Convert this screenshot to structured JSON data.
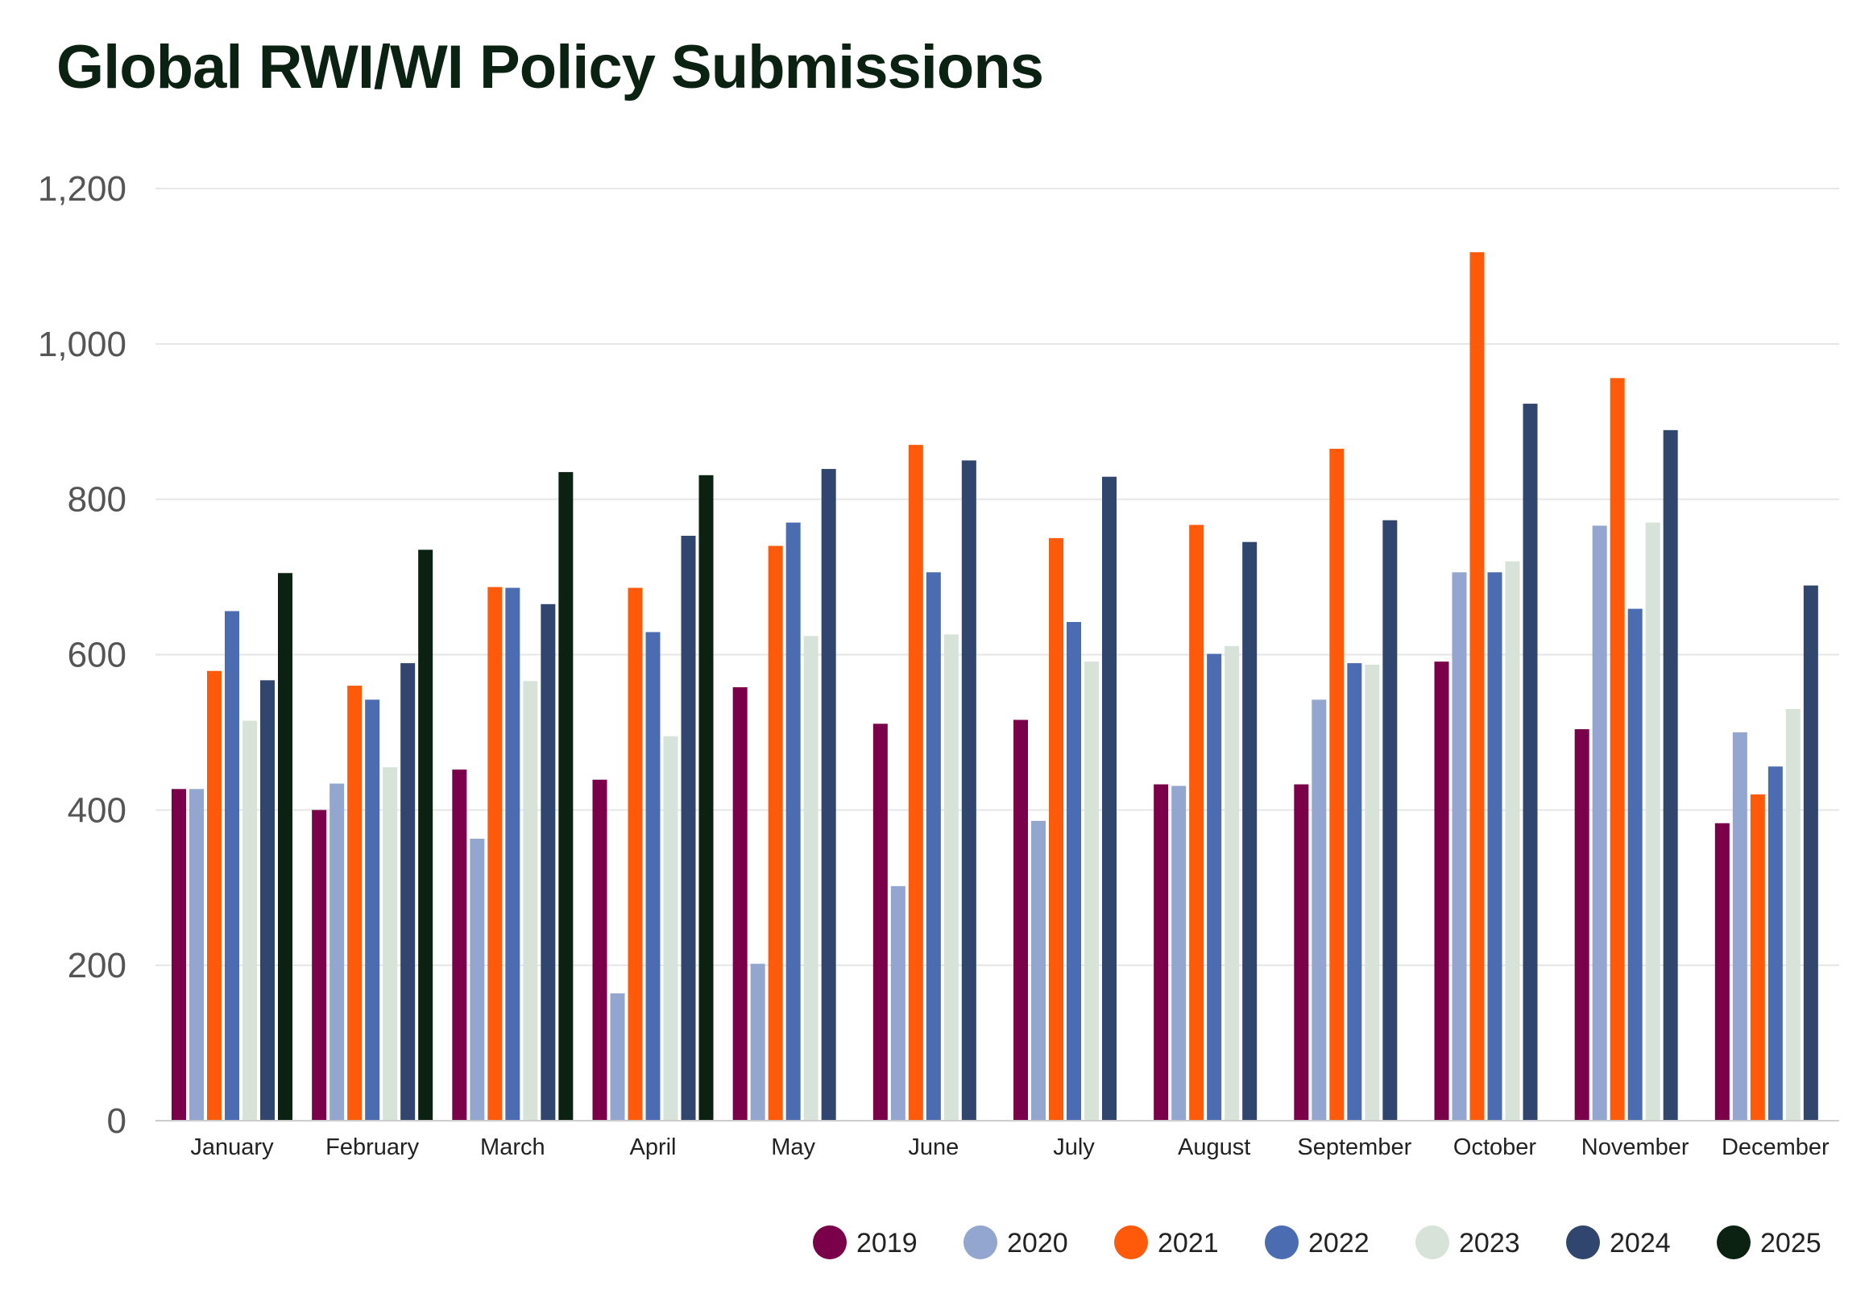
{
  "chart_data": {
    "type": "bar",
    "title": "Global RWI/WI Policy Submissions",
    "xlabel": "",
    "ylabel": "",
    "ylim": [
      0,
      1200
    ],
    "yticks": [
      0,
      200,
      400,
      600,
      800,
      1000,
      1200
    ],
    "grid": true,
    "legend_position": "bottom-right",
    "categories": [
      "January",
      "February",
      "March",
      "April",
      "May",
      "June",
      "July",
      "August",
      "September",
      "October",
      "November",
      "December"
    ],
    "series": [
      {
        "name": "2019",
        "color": "#7a0049",
        "values": [
          427,
          400,
          452,
          439,
          558,
          511,
          516,
          433,
          433,
          591,
          504,
          383
        ]
      },
      {
        "name": "2020",
        "color": "#93a6cf",
        "values": [
          427,
          434,
          363,
          164,
          202,
          302,
          386,
          431,
          542,
          706,
          766,
          500
        ]
      },
      {
        "name": "2021",
        "color": "#ff5a0a",
        "values": [
          579,
          560,
          687,
          686,
          740,
          870,
          750,
          767,
          865,
          1118,
          956,
          420
        ]
      },
      {
        "name": "2022",
        "color": "#4b6cb0",
        "values": [
          656,
          542,
          686,
          629,
          770,
          706,
          642,
          601,
          589,
          706,
          659,
          456
        ]
      },
      {
        "name": "2023",
        "color": "#d7e2d8",
        "values": [
          515,
          455,
          566,
          495,
          624,
          626,
          591,
          611,
          587,
          720,
          770,
          530
        ]
      },
      {
        "name": "2024",
        "color": "#30466e",
        "values": [
          567,
          589,
          665,
          753,
          839,
          850,
          829,
          745,
          773,
          923,
          889,
          689
        ]
      },
      {
        "name": "2025",
        "color": "#0b2212",
        "values": [
          705,
          735,
          835,
          831,
          null,
          null,
          null,
          null,
          null,
          null,
          null,
          null
        ]
      }
    ],
    "colors": {
      "title": "#0b2212",
      "grid": "#e6e6e6",
      "axis": "#cccccc"
    }
  }
}
